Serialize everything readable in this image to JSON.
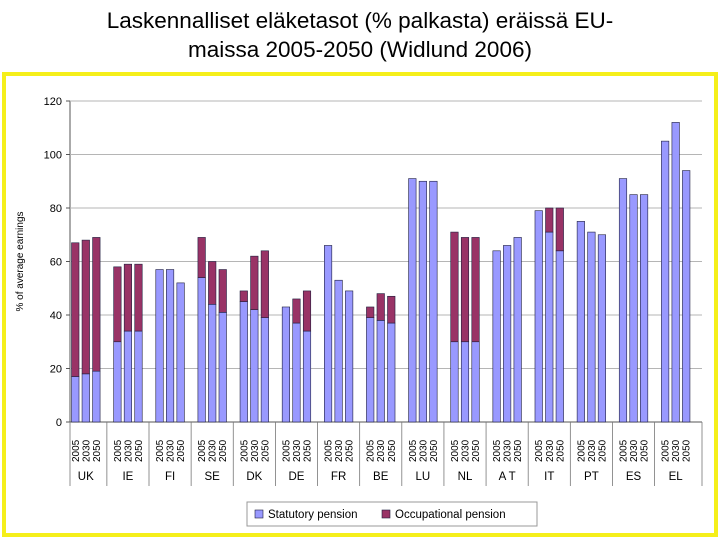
{
  "title_lines": [
    "Laskennalliset eläketasot (% palkasta) eräissä EU-",
    "maissa 2005-2050 (Widlund 2006)"
  ],
  "chart_data": {
    "type": "bar",
    "stacked": true,
    "ylabel": "% of average earnings",
    "ylim": [
      0,
      120
    ],
    "yticks": [
      0,
      20,
      40,
      60,
      80,
      100,
      120
    ],
    "colors": {
      "statutory": "#9999ff",
      "occupational": "#993366",
      "border": "#1f1f3f",
      "frame": "#f5ef1a"
    },
    "legend": {
      "position": "bottom",
      "items": [
        {
          "key": "statutory",
          "label": "Statutory pension"
        },
        {
          "key": "occupational",
          "label": "Occupational pension"
        }
      ]
    },
    "groups": [
      {
        "country": "UK",
        "years": [
          "2005",
          "2030",
          "2050"
        ],
        "statutory": [
          17,
          18,
          19
        ],
        "occupational": [
          50,
          50,
          50
        ]
      },
      {
        "country": "IE",
        "years": [
          "2005",
          "2030",
          "2050"
        ],
        "statutory": [
          30,
          34,
          34
        ],
        "occupational": [
          28,
          25,
          25
        ]
      },
      {
        "country": "FI",
        "years": [
          "2005",
          "2030",
          "2050"
        ],
        "statutory": [
          57,
          57,
          52
        ],
        "occupational": [
          0,
          0,
          0
        ]
      },
      {
        "country": "SE",
        "years": [
          "2005",
          "2030",
          "2050"
        ],
        "statutory": [
          54,
          44,
          41
        ],
        "occupational": [
          15,
          16,
          16
        ]
      },
      {
        "country": "DK",
        "years": [
          "2005",
          "2030",
          "2050"
        ],
        "statutory": [
          45,
          42,
          39
        ],
        "occupational": [
          4,
          20,
          25
        ]
      },
      {
        "country": "DE",
        "years": [
          "2005",
          "2030",
          "2050"
        ],
        "statutory": [
          43,
          37,
          34
        ],
        "occupational": [
          0,
          9,
          15
        ]
      },
      {
        "country": "FR",
        "years": [
          "2005",
          "2030",
          "2050"
        ],
        "statutory": [
          66,
          53,
          49
        ],
        "occupational": [
          0,
          0,
          0
        ]
      },
      {
        "country": "BE",
        "years": [
          "2005",
          "2030",
          "2050"
        ],
        "statutory": [
          39,
          38,
          37
        ],
        "occupational": [
          4,
          10,
          10
        ]
      },
      {
        "country": "LU",
        "years": [
          "2005",
          "2030",
          "2050"
        ],
        "statutory": [
          91,
          90,
          90
        ],
        "occupational": [
          0,
          0,
          0
        ]
      },
      {
        "country": "NL",
        "years": [
          "2005",
          "2030",
          "2050"
        ],
        "statutory": [
          30,
          30,
          30
        ],
        "occupational": [
          41,
          39,
          39
        ]
      },
      {
        "country": "A T",
        "years": [
          "2005",
          "2030",
          "2050"
        ],
        "statutory": [
          64,
          66,
          69
        ],
        "occupational": [
          0,
          0,
          0
        ]
      },
      {
        "country": "IT",
        "years": [
          "2005",
          "2030",
          "2050"
        ],
        "statutory": [
          79,
          71,
          64
        ],
        "occupational": [
          0,
          9,
          16
        ]
      },
      {
        "country": "PT",
        "years": [
          "2005",
          "2030",
          "2050"
        ],
        "statutory": [
          75,
          71,
          70
        ],
        "occupational": [
          0,
          0,
          0
        ]
      },
      {
        "country": "ES",
        "years": [
          "2005",
          "2030",
          "2050"
        ],
        "statutory": [
          91,
          85,
          85
        ],
        "occupational": [
          0,
          0,
          0
        ]
      },
      {
        "country": "EL",
        "years": [
          "2005",
          "2030",
          "2050"
        ],
        "statutory": [
          105,
          112,
          94
        ],
        "occupational": [
          0,
          0,
          0
        ]
      }
    ]
  }
}
